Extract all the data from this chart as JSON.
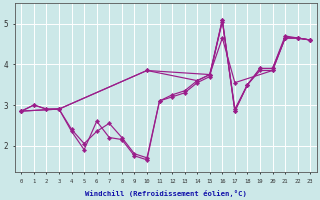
{
  "x": [
    0,
    1,
    2,
    3,
    4,
    5,
    6,
    7,
    8,
    9,
    10,
    11,
    12,
    13,
    14,
    15,
    16,
    17,
    18,
    19,
    20,
    21,
    22,
    23
  ],
  "line1": [
    2.85,
    3.0,
    2.9,
    2.9,
    2.35,
    1.9,
    2.6,
    2.2,
    2.15,
    1.75,
    1.65,
    3.1,
    3.2,
    3.3,
    3.55,
    3.7,
    5.1,
    2.85,
    3.5,
    3.85,
    3.85,
    4.65,
    4.65,
    4.6
  ],
  "line2": [
    2.85,
    3.0,
    2.9,
    2.9,
    2.4,
    2.05,
    2.35,
    2.55,
    2.2,
    1.8,
    1.7,
    3.1,
    3.25,
    3.35,
    3.6,
    3.75,
    5.05,
    2.9,
    3.5,
    3.9,
    3.9,
    4.65,
    4.65,
    4.6
  ],
  "line3_x": [
    0,
    3,
    10,
    15,
    16,
    17,
    20,
    21,
    22,
    23
  ],
  "line3_y": [
    2.85,
    2.9,
    3.85,
    3.75,
    4.65,
    3.55,
    3.85,
    4.65,
    4.65,
    4.6
  ],
  "line4_x": [
    0,
    3,
    10,
    14,
    15,
    16,
    17,
    18,
    19,
    20,
    21,
    22,
    23
  ],
  "line4_y": [
    2.85,
    2.9,
    3.85,
    3.6,
    3.75,
    5.1,
    2.85,
    3.5,
    3.9,
    3.9,
    4.7,
    4.65,
    4.6
  ],
  "line_color": "#9B1E8B",
  "bg_color": "#cce8e8",
  "grid_color": "#b8dada",
  "xlabel": "Windchill (Refroidissement éolien,°C)",
  "ylabel_ticks": [
    2,
    3,
    4,
    5
  ],
  "xlim": [
    -0.5,
    23.5
  ],
  "ylim": [
    1.35,
    5.5
  ]
}
